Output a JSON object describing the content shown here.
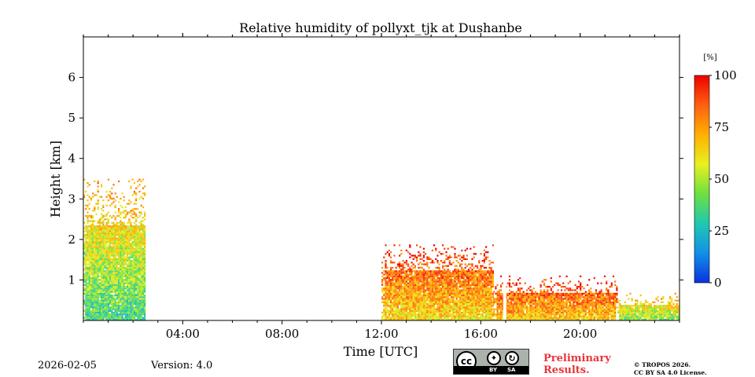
{
  "chart_data": {
    "type": "heatmap",
    "title": "Relative humidity of pollyxt_tjk at Dushanbe",
    "xlabel": "Time [UTC]",
    "ylabel": "Height [km]",
    "xlim_hours": [
      0,
      24
    ],
    "ylim_km": [
      0,
      7
    ],
    "x_ticks": [
      {
        "hour": 4,
        "label": "04:00"
      },
      {
        "hour": 8,
        "label": "08:00"
      },
      {
        "hour": 12,
        "label": "12:00"
      },
      {
        "hour": 16,
        "label": "16:00"
      },
      {
        "hour": 20,
        "label": "20:00"
      }
    ],
    "y_ticks": [
      {
        "km": 1,
        "label": "1"
      },
      {
        "km": 2,
        "label": "2"
      },
      {
        "km": 3,
        "label": "3"
      },
      {
        "km": 4,
        "label": "4"
      },
      {
        "km": 5,
        "label": "5"
      },
      {
        "km": 6,
        "label": "6"
      }
    ],
    "colorbar": {
      "unit": "[%]",
      "range": [
        0,
        100
      ],
      "ticks": [
        {
          "value": 0,
          "label": "0"
        },
        {
          "value": 25,
          "label": "25"
        },
        {
          "value": 50,
          "label": "50"
        },
        {
          "value": 75,
          "label": "75"
        },
        {
          "value": 100,
          "label": "100"
        }
      ],
      "colormap": [
        "#0a32e0",
        "#1290e8",
        "#20c8b0",
        "#6ee040",
        "#e8f020",
        "#ffb000",
        "#ff6010",
        "#ee0000"
      ]
    },
    "segments": [
      {
        "start_hour": 0.0,
        "end_hour": 2.5,
        "max_height_km": 3.4,
        "humidity_low": 20,
        "humidity_high": 75
      },
      {
        "start_hour": 12.0,
        "end_hour": 16.5,
        "max_height_km": 1.8,
        "humidity_low": 50,
        "humidity_high": 95
      },
      {
        "start_hour": 16.5,
        "end_hour": 21.5,
        "max_height_km": 1.0,
        "humidity_low": 55,
        "humidity_high": 95
      },
      {
        "start_hour": 21.5,
        "end_hour": 24.0,
        "max_height_km": 0.6,
        "humidity_low": 35,
        "humidity_high": 70
      }
    ]
  },
  "footer": {
    "date": "2026-02-05",
    "version": "Version: 4.0",
    "preliminary_line1": "Preliminary",
    "preliminary_line2": "Results.",
    "copyright_line1": "© TROPOS 2026.",
    "copyright_line2": "CC BY SA 4.0 License."
  },
  "license_badge": {
    "cc": "cc",
    "by": "BY",
    "sa": "SA"
  }
}
